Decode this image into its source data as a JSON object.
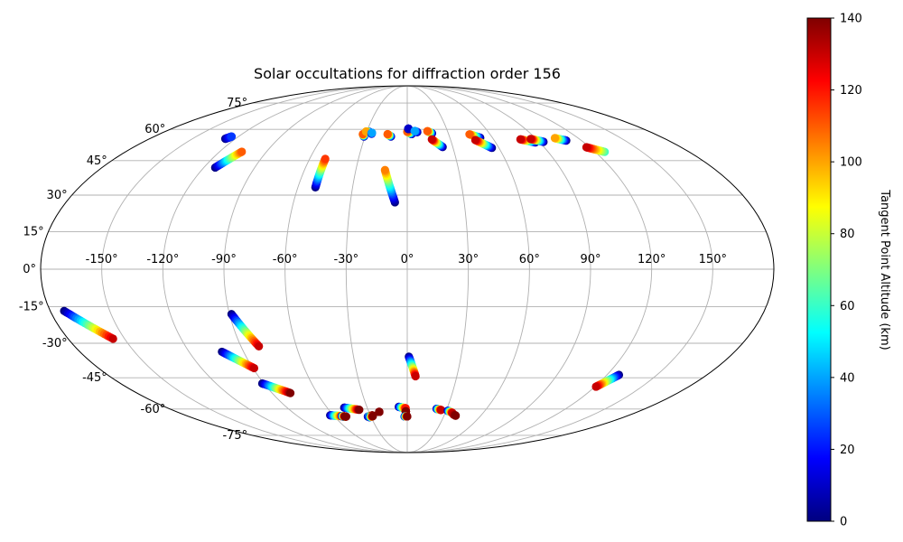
{
  "chart_data": {
    "type": "scatter",
    "projection": "mollweide",
    "title": "Solar occultations for diffraction order 156",
    "grid": true,
    "lon_ticks": [
      -150,
      -120,
      -90,
      -60,
      -30,
      0,
      30,
      60,
      90,
      120,
      150
    ],
    "lon_tick_labels": [
      "-150°",
      "-120°",
      "-90°",
      "-60°",
      "-30°",
      "0°",
      "30°",
      "60°",
      "90°",
      "120°",
      "150°"
    ],
    "lat_ticks": [
      -75,
      -60,
      -45,
      -30,
      -15,
      0,
      15,
      30,
      45,
      60,
      75
    ],
    "lat_tick_labels": [
      "-75°",
      "-60°",
      "-45°",
      "-30°",
      "-15°",
      "0°",
      "15°",
      "30°",
      "45°",
      "60°",
      "75°"
    ],
    "colorbar": {
      "label": "Tangent Point Altitude (km)",
      "colormap": "jet",
      "range": [
        0,
        140
      ],
      "ticks": [
        0,
        20,
        40,
        60,
        80,
        100,
        120,
        140
      ],
      "tick_labels": [
        "0",
        "20",
        "40",
        "60",
        "80",
        "100",
        "120",
        "140"
      ]
    },
    "tracks": [
      {
        "lon0": -127.1,
        "lat0": 55.3,
        "alt0": 0,
        "lon1": -124.9,
        "lat1": 56.4,
        "alt1": 25
      },
      {
        "lon0": -113.3,
        "lat0": 41.9,
        "alt0": 0,
        "lon1": -105.8,
        "lat1": 49.1,
        "alt1": 110
      },
      {
        "lon0": -50.4,
        "lat0": 33.3,
        "alt0": 0,
        "lon1": -50.4,
        "lat1": 45.8,
        "alt1": 115
      },
      {
        "lon0": -30.8,
        "lat0": 56.4,
        "alt0": 0,
        "lon1": -32.2,
        "lat1": 57.6,
        "alt1": 110
      },
      {
        "lon0": -28.2,
        "lat0": 58.8,
        "alt0": 0,
        "lon1": -30.6,
        "lat1": 58.9,
        "alt1": 100
      },
      {
        "lon0": -26.0,
        "lat0": 57.8,
        "alt0": 0,
        "lon1": -26.0,
        "lat1": 58.3,
        "alt1": 40
      },
      {
        "lon0": -11.6,
        "lat0": 56.4,
        "alt0": 0,
        "lon1": -14.3,
        "lat1": 57.6,
        "alt1": 110
      },
      {
        "lon0": -6.5,
        "lat0": 27.0,
        "alt0": 0,
        "lon1": -13.0,
        "lat1": 40.8,
        "alt1": 105
      },
      {
        "lon0": 3.2,
        "lat0": 57.6,
        "alt0": 0,
        "lon1": 0.0,
        "lat1": 58.8,
        "alt1": 110
      },
      {
        "lon0": 0.9,
        "lat0": 60.2,
        "alt0": 0,
        "lon1": 0.9,
        "lat1": 60.4,
        "alt1": 10
      },
      {
        "lon0": 7.4,
        "lat0": 58.6,
        "alt0": 0,
        "lon1": 5.5,
        "lat1": 59.2,
        "alt1": 40
      },
      {
        "lon0": 18.1,
        "lat0": 58.0,
        "alt0": 0,
        "lon1": 15.0,
        "lat1": 59.1,
        "alt1": 110
      },
      {
        "lon0": 23.3,
        "lat0": 51.3,
        "alt0": 0,
        "lon1": 17.1,
        "lat1": 55.0,
        "alt1": 130
      },
      {
        "lon0": 51.4,
        "lat0": 55.8,
        "alt0": 0,
        "lon1": 45.1,
        "lat1": 57.5,
        "alt1": 110
      },
      {
        "lon0": 55.4,
        "lat0": 50.9,
        "alt0": 0,
        "lon1": 47.1,
        "lat1": 54.7,
        "alt1": 130
      },
      {
        "lon0": 87.1,
        "lat0": 53.5,
        "alt0": 0,
        "lon1": 78.7,
        "lat1": 55.0,
        "alt1": 130
      },
      {
        "lon0": 93.0,
        "lat0": 53.8,
        "alt0": 0,
        "lon1": 86.1,
        "lat1": 55.2,
        "alt1": 130
      },
      {
        "lon0": 109.5,
        "lat0": 54.4,
        "alt0": 0,
        "lon1": 103.6,
        "lat1": 55.6,
        "alt1": 100
      },
      {
        "lon0": 126.1,
        "lat0": 49.0,
        "alt0": 60,
        "lon1": 117.8,
        "lat1": 51.2,
        "alt1": 130
      },
      {
        "lon0": -173.0,
        "lat0": -16.7,
        "alt0": 0,
        "lon1": -156.1,
        "lat1": -28.1,
        "alt1": 130
      },
      {
        "lon0": -89.0,
        "lat0": -18.0,
        "alt0": 0,
        "lon1": -80.3,
        "lat1": -31.3,
        "alt1": 130
      },
      {
        "lon0": -101.9,
        "lat0": -33.6,
        "alt0": 0,
        "lon1": -89.3,
        "lat1": -40.7,
        "alt1": 130
      },
      {
        "lon0": -91.0,
        "lat0": -47.6,
        "alt0": 0,
        "lon1": -77.8,
        "lat1": -52.1,
        "alt1": 140
      },
      {
        "lon0": -62.6,
        "lat0": -63.3,
        "alt0": 0,
        "lon1": -52.8,
        "lat1": -63.8,
        "alt1": 130
      },
      {
        "lon0": -47.2,
        "lat0": -59.3,
        "alt0": 0,
        "lon1": -36.7,
        "lat1": -60.4,
        "alt1": 140
      },
      {
        "lon0": -52.9,
        "lat0": -64.0,
        "alt0": 0,
        "lon1": -50.4,
        "lat1": -64.0,
        "alt1": 140
      },
      {
        "lon0": -53.6,
        "lat0": -63.7,
        "alt0": 0,
        "lon1": -51.5,
        "lat1": -63.9,
        "alt1": 140
      },
      {
        "lon0": -32.5,
        "lat0": -64.0,
        "alt0": 0,
        "lon1": -28.3,
        "lat1": -63.3,
        "alt1": 140
      },
      {
        "lon0": -31.6,
        "lat0": -64.3,
        "alt0": 0,
        "lon1": -28.3,
        "lat1": -63.8,
        "alt1": 140
      },
      {
        "lon0": -21.9,
        "lat0": -61.5,
        "alt0": 130,
        "lon1": -21.9,
        "lat1": -61.5,
        "alt1": 140
      },
      {
        "lon0": -6.3,
        "lat0": -58.9,
        "alt0": 0,
        "lon1": -1.2,
        "lat1": -59.6,
        "alt1": 120
      },
      {
        "lon0": -1.1,
        "lat0": -61.1,
        "alt0": 130,
        "lon1": -1.1,
        "lat1": -61.4,
        "alt1": 140
      },
      {
        "lon0": -2.2,
        "lat0": -63.9,
        "alt0": 0,
        "lon1": 0.0,
        "lat1": -63.9,
        "alt1": 140
      },
      {
        "lon0": 0.9,
        "lat0": -35.7,
        "alt0": 0,
        "lon1": 5.0,
        "lat1": -44.3,
        "alt1": 130
      },
      {
        "lon0": 22.2,
        "lat0": -59.9,
        "alt0": 0,
        "lon1": 25.9,
        "lat1": -60.5,
        "alt1": 130
      },
      {
        "lon0": 31.3,
        "lat0": -60.9,
        "alt0": 0,
        "lon1": 35.6,
        "lat1": -62.0,
        "alt1": 130
      },
      {
        "lon0": 37.1,
        "lat0": -62.8,
        "alt0": 130,
        "lon1": 39.5,
        "lat1": -63.5,
        "alt1": 140
      },
      {
        "lon0": 127.2,
        "lat0": -43.7,
        "alt0": 0,
        "lon1": 120.7,
        "lat1": -49.1,
        "alt1": 130
      }
    ]
  }
}
